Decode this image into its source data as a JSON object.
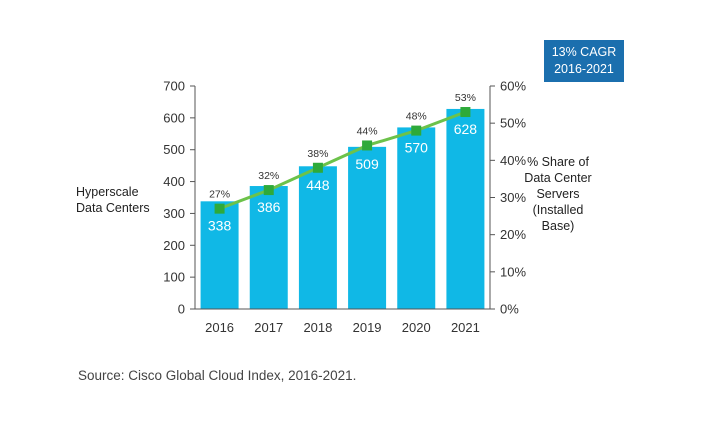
{
  "badge": {
    "line1": "13% CAGR",
    "line2": "2016-2021"
  },
  "source": "Source: Cisco Global Cloud Index, 2016-2021.",
  "colors": {
    "bar": "#10b8e6",
    "line": "#6cc24a",
    "marker": "#2eaa3a",
    "badge": "#1b6fae"
  },
  "chart_data": {
    "type": "bar",
    "categories": [
      "2016",
      "2017",
      "2018",
      "2019",
      "2020",
      "2021"
    ],
    "series": [
      {
        "values": [
          338,
          386,
          448,
          509,
          570,
          628
        ],
        "axis": "left",
        "type": "bar"
      },
      {
        "values": [
          27,
          32,
          38,
          44,
          48,
          53
        ],
        "axis": "right",
        "type": "line"
      }
    ],
    "ylabel": "Hyperscale Data Centers",
    "ylabel2": "% Share of Data Center Servers (Installed Base)",
    "ylim": [
      0,
      700
    ],
    "y2lim": [
      0,
      60
    ],
    "yticks": [
      "0",
      "100",
      "200",
      "300",
      "400",
      "500",
      "600",
      "700"
    ],
    "y2ticks": [
      "0%",
      "10%",
      "20%",
      "30%",
      "40%",
      "50%",
      "60%"
    ],
    "bar_value_labels": [
      "338",
      "386",
      "448",
      "509",
      "570",
      "628"
    ],
    "line_value_labels": [
      "27%",
      "32%",
      "38%",
      "44%",
      "48%",
      "53%"
    ]
  }
}
